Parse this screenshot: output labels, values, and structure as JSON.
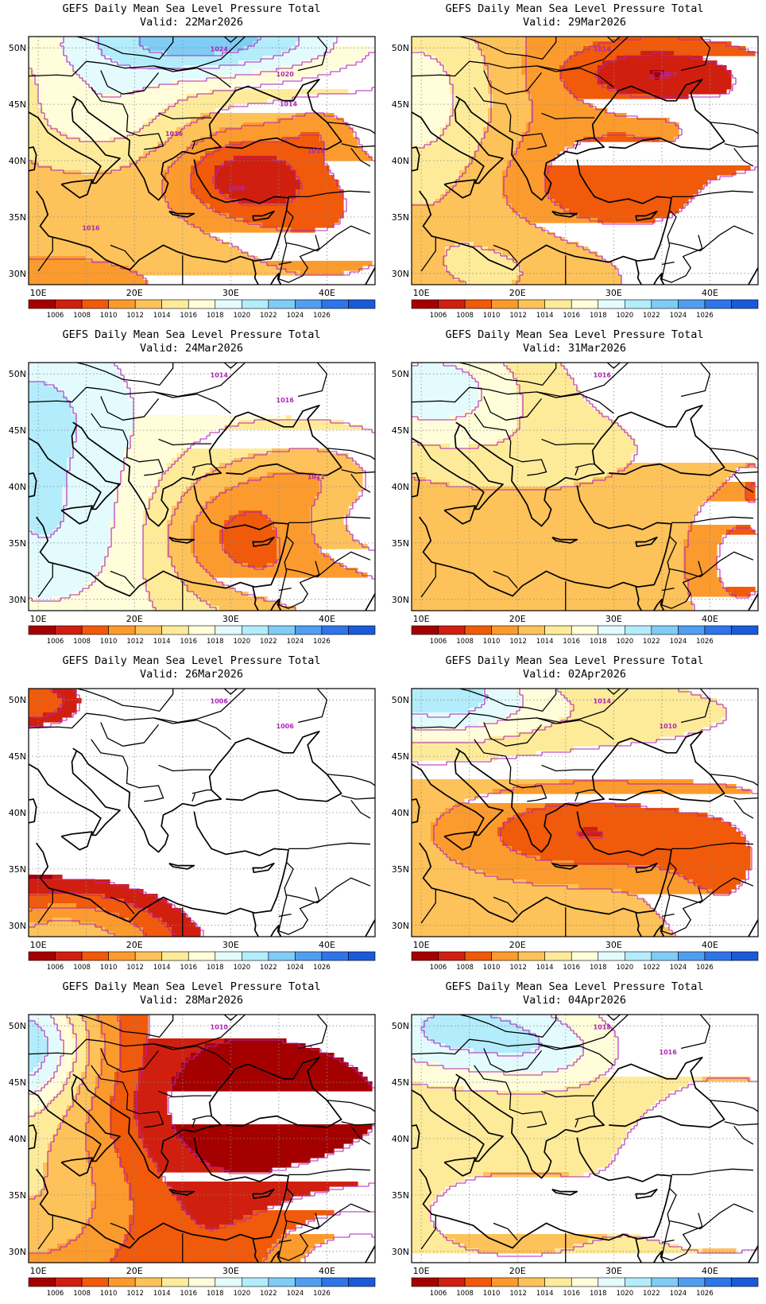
{
  "panels": [
    {
      "title": "GEFS Daily Mean Sea Level Pressure Total",
      "valid": "Valid: 22Mar2026",
      "field": "f0",
      "labels": [
        "1024",
        "1020",
        "1018",
        "1016",
        "1014",
        "1016",
        "1008"
      ]
    },
    {
      "title": "GEFS Daily Mean Sea Level Pressure Total",
      "valid": "Valid: 29Mar2026",
      "field": "f4",
      "labels": [
        "1014",
        "1010"
      ]
    },
    {
      "title": "GEFS Daily Mean Sea Level Pressure Total",
      "valid": "Valid: 24Mar2026",
      "field": "f1",
      "labels": [
        "1014",
        "1016",
        "1012"
      ]
    },
    {
      "title": "GEFS Daily Mean Sea Level Pressure Total",
      "valid": "Valid: 31Mar2026",
      "field": "f5",
      "labels": [
        "1016"
      ]
    },
    {
      "title": "GEFS Daily Mean Sea Level Pressure Total",
      "valid": "Valid: 26Mar2026",
      "field": "f2",
      "labels": [
        "1006",
        "1006"
      ]
    },
    {
      "title": "GEFS Daily Mean Sea Level Pressure Total",
      "valid": "Valid: 02Apr2026",
      "field": "f6",
      "labels": [
        "1014",
        "1010"
      ]
    },
    {
      "title": "GEFS Daily Mean Sea Level Pressure Total",
      "valid": "Valid: 28Mar2026",
      "field": "f3",
      "labels": [
        "1010"
      ]
    },
    {
      "title": "GEFS Daily Mean Sea Level Pressure Total",
      "valid": "Valid: 04Apr2026",
      "field": "f7",
      "labels": [
        "1018",
        "1016"
      ]
    }
  ],
  "axes": {
    "lon_ticks": [
      "10E",
      "20E",
      "30E",
      "40E"
    ],
    "lat_ticks": [
      "50N",
      "45N",
      "40N",
      "35N",
      "30N"
    ]
  },
  "colorbar": {
    "labels": [
      "1006",
      "1008",
      "1010",
      "1012",
      "1014",
      "1016",
      "1018",
      "1020",
      "1022",
      "1024",
      "1026"
    ],
    "colors": [
      "#a50000",
      "#d11f0f",
      "#f05a0a",
      "#fc9b2d",
      "#fdc259",
      "#feeb9a",
      "#fffdda",
      "#e3fbfd",
      "#b3ecfb",
      "#7fccf5",
      "#509ef0",
      "#2d75e8",
      "#1a5ad8"
    ]
  }
}
